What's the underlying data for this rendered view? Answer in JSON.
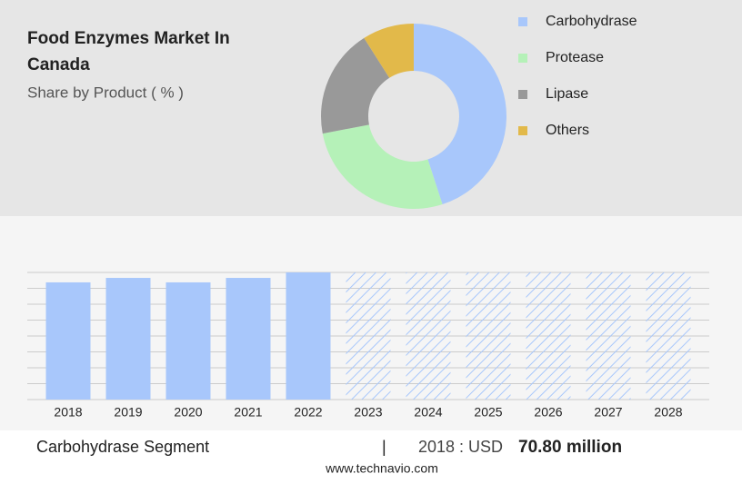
{
  "chart_data": [
    {
      "type": "pie",
      "title": "Food Enzymes Market In Canada",
      "subtitle": "Share by Product ( % )",
      "categories": [
        "Carbohydrase",
        "Protease",
        "Lipase",
        "Others"
      ],
      "values": [
        45,
        27,
        19,
        9
      ],
      "colors": [
        "#a8c7fb",
        "#b5f1b8",
        "#999999",
        "#e2b94a"
      ],
      "donut": true
    },
    {
      "type": "bar",
      "categories": [
        "2018",
        "2019",
        "2020",
        "2021",
        "2022",
        "2023",
        "2024",
        "2025",
        "2026",
        "2027",
        "2028"
      ],
      "values": [
        70.8,
        73.5,
        70.8,
        73.5,
        76.8,
        null,
        null,
        null,
        null,
        null,
        null
      ],
      "color": "#a8c7fb",
      "ylim": [
        0,
        76.8
      ]
    }
  ],
  "footer": {
    "segment": "Carbohydrase Segment",
    "separator": "|",
    "year_label": "2018 : USD",
    "value_label": "70.80 million",
    "source": "www.technavio.com"
  }
}
